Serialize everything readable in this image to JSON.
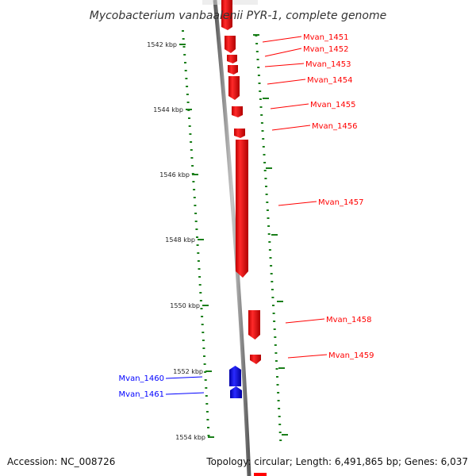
{
  "title": "Mycobacterium vanbaalenii PYR-1, complete genome",
  "footer": {
    "accession": "Accession: NC_008726",
    "summary": "Topology: circular; Length: 6,491,865 bp; Genes: 6,037"
  },
  "colors": {
    "forward_gene": "#ff0000",
    "reverse_gene": "#0000ff",
    "tick": "#1a7f1a",
    "backbone": "#808080"
  },
  "ticks": [
    {
      "label": "1542 kbp"
    },
    {
      "label": "1544 kbp"
    },
    {
      "label": "1546 kbp"
    },
    {
      "label": "1548 kbp"
    },
    {
      "label": "1550 kbp"
    },
    {
      "label": "1552 kbp"
    },
    {
      "label": "1554 kbp"
    }
  ],
  "genes": [
    {
      "name": "Mvan_1451",
      "strand": "forward"
    },
    {
      "name": "Mvan_1452",
      "strand": "forward"
    },
    {
      "name": "Mvan_1453",
      "strand": "forward"
    },
    {
      "name": "Mvan_1454",
      "strand": "forward"
    },
    {
      "name": "Mvan_1455",
      "strand": "forward"
    },
    {
      "name": "Mvan_1456",
      "strand": "forward"
    },
    {
      "name": "Mvan_1457",
      "strand": "forward"
    },
    {
      "name": "Mvan_1458",
      "strand": "forward"
    },
    {
      "name": "Mvan_1459",
      "strand": "forward"
    },
    {
      "name": "Mvan_1460",
      "strand": "reverse"
    },
    {
      "name": "Mvan_1461",
      "strand": "reverse"
    }
  ]
}
